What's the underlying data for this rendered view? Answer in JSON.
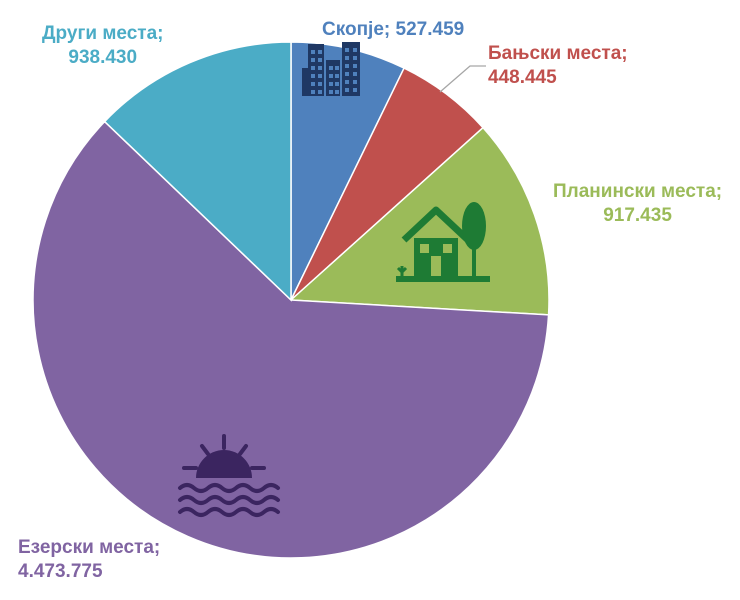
{
  "chart_data": {
    "type": "pie",
    "slices": [
      {
        "label": "Скопје",
        "value": 527459,
        "display_value": "527.459",
        "color": "#4F81BD",
        "icon": "city-buildings-icon"
      },
      {
        "label": "Бањски места",
        "value": 448445,
        "display_value": "448.445",
        "color": "#C0504D",
        "icon": ""
      },
      {
        "label": "Планински места",
        "value": 917435,
        "display_value": "917.435",
        "color": "#9BBB59",
        "icon": "mountain-house-icon"
      },
      {
        "label": "Езерски места",
        "value": 4473775,
        "display_value": "4.473.775",
        "color": "#8064A2",
        "icon": "lake-sunset-icon"
      },
      {
        "label": "Други места",
        "value": 938430,
        "display_value": "938.430",
        "color": "#4BACC6",
        "icon": ""
      }
    ],
    "start_angle_degrees": 0,
    "direction": "clockwise",
    "label_separator": ";",
    "icon_colors": {
      "city-buildings-icon": "#1F3864",
      "mountain-house-icon": "#1E7B34",
      "lake-sunset-icon": "#3B2560"
    },
    "leader_line_color": "#A6A6A6"
  }
}
